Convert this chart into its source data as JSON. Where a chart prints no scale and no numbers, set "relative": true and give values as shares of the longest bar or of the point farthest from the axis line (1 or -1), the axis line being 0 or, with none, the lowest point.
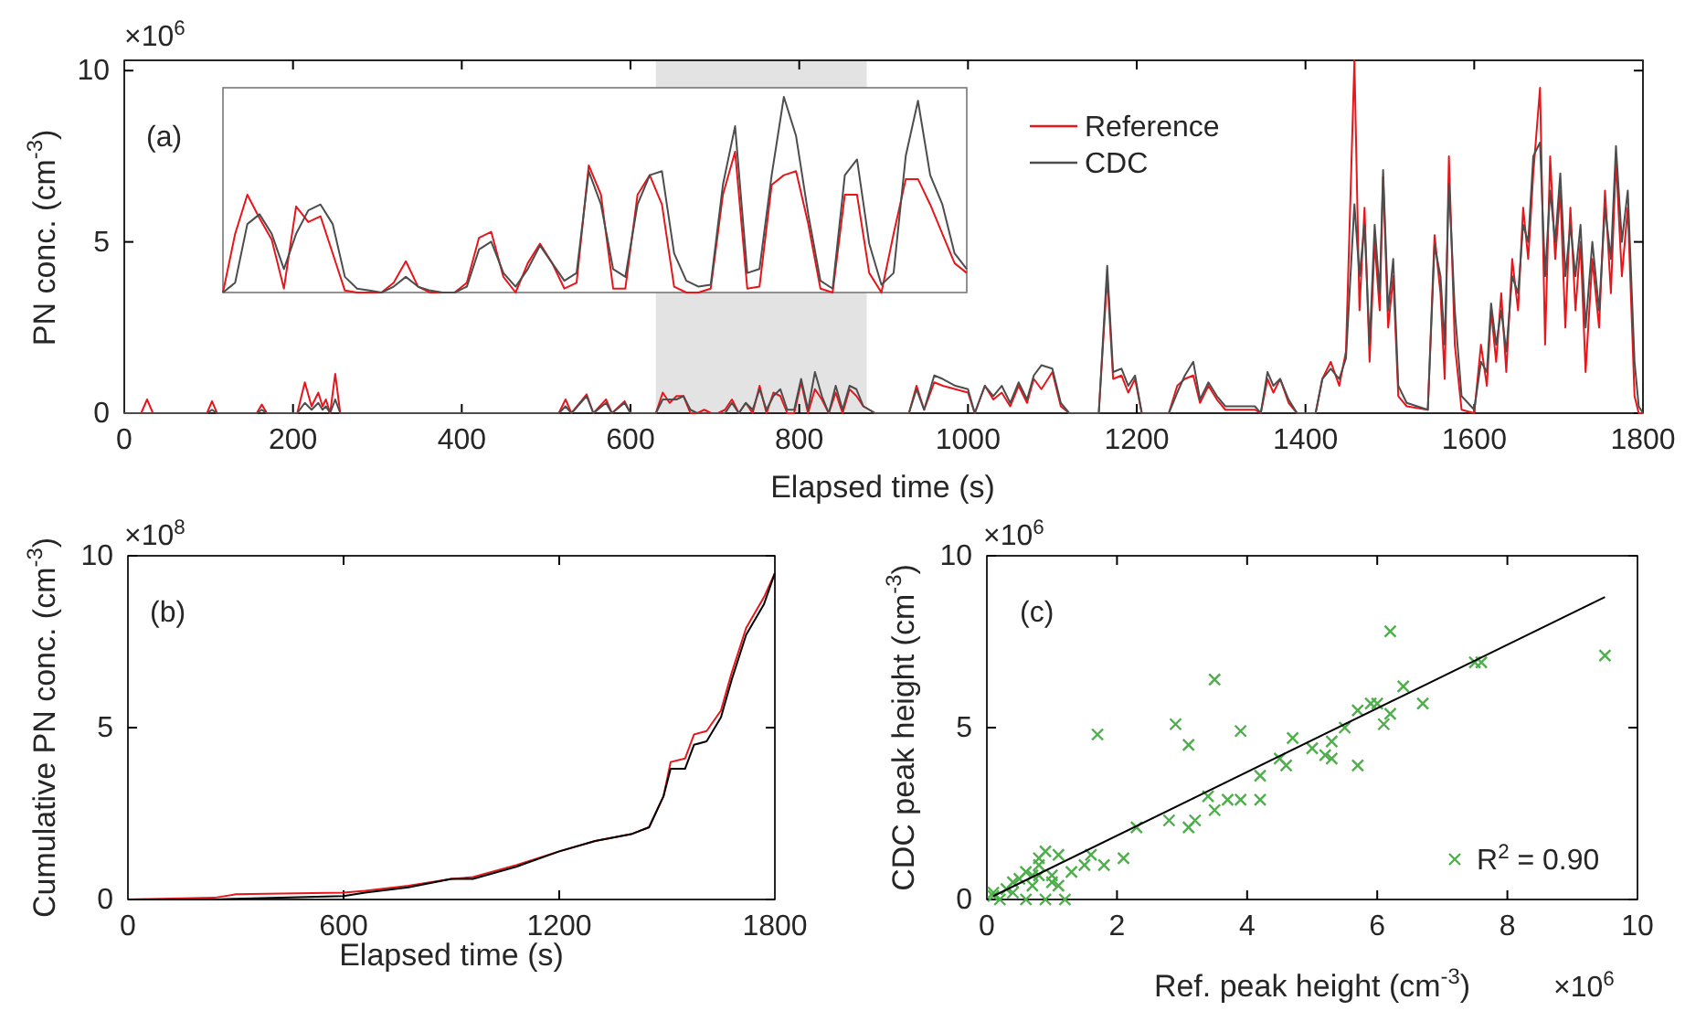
{
  "chart_data": [
    {
      "type": "line",
      "xlabel": "Elapsed time (s)",
      "ylabel": "PN conc. (cm$^{-3}$)",
      "annotations": [
        "×10$^{6}$",
        "(a)"
      ],
      "xlim": [
        0,
        1800
      ],
      "ylim": [
        0,
        10.3
      ],
      "xticks": [
        0,
        200,
        400,
        600,
        800,
        1000,
        1200,
        1400,
        1600,
        1800
      ],
      "yticks": [
        0,
        5,
        10
      ],
      "legend": "top",
      "bands": [
        {
          "axis": "x",
          "from": 630,
          "to": 880,
          "color": "#e3e3e3"
        }
      ],
      "x": [
        0,
        20,
        27,
        34,
        98,
        104,
        110,
        157,
        163,
        169,
        205,
        214,
        222,
        230,
        235,
        239,
        244,
        250,
        256,
        515,
        523,
        530,
        548,
        556,
        571,
        578,
        593,
        600,
        630,
        638.2,
        646.4,
        654.6,
        662.8,
        671,
        679.2,
        687.4,
        695.6,
        703.8,
        712,
        720.2,
        728.4,
        736.6,
        744.8,
        753,
        761.2,
        769.4,
        777.6,
        785.8,
        794,
        802.2,
        810.4,
        818.6,
        826.8,
        835,
        843.2,
        851.4,
        859.6,
        867.8,
        876,
        890,
        930,
        939,
        948,
        960,
        970,
        985,
        1000,
        1008,
        1020,
        1030,
        1040,
        1050,
        1060,
        1070,
        1078,
        1087,
        1100,
        1110,
        1120,
        1155,
        1165,
        1172,
        1182,
        1190,
        1198,
        1206,
        1238,
        1248,
        1257,
        1267,
        1275,
        1285,
        1295,
        1305,
        1340,
        1347,
        1355,
        1362,
        1370,
        1380,
        1390,
        1412,
        1420,
        1430,
        1440,
        1448,
        1458,
        1464,
        1470,
        1476,
        1482,
        1488,
        1492,
        1498,
        1504,
        1510,
        1520,
        1545,
        1553,
        1560,
        1565,
        1570,
        1577,
        1585,
        1600,
        1608,
        1615,
        1620,
        1626,
        1632,
        1638,
        1645,
        1652,
        1658,
        1664,
        1670,
        1678,
        1684,
        1690,
        1696,
        1702,
        1708,
        1714,
        1720,
        1726,
        1732,
        1740,
        1748,
        1755,
        1762,
        1768,
        1775,
        1782,
        1790,
        1795,
        1800
      ],
      "series": [
        {
          "name": "Reference",
          "color": "#e8161b",
          "values": [
            0,
            0,
            0.4,
            0,
            0,
            0.35,
            0,
            0,
            0.25,
            0,
            0,
            0.9,
            0.2,
            0.6,
            0.2,
            0.4,
            0,
            1.15,
            0,
            0,
            0.4,
            0,
            0.55,
            0,
            0.4,
            0,
            0.35,
            0,
            0,
            0.6,
            0.3,
            0.5,
            0.5,
            0,
            0,
            0.1,
            0,
            0,
            0.1,
            0.4,
            0,
            0.3,
            0,
            0.8,
            0,
            0.6,
            0.5,
            0,
            0,
            0.9,
            0,
            0.7,
            0.4,
            0,
            0.6,
            0,
            0.7,
            0.5,
            0.2,
            0,
            0,
            0.8,
            0.1,
            0.9,
            0.8,
            0.7,
            0.6,
            0,
            0.8,
            0.4,
            0.6,
            0.2,
            0.8,
            0.3,
            1.0,
            0.7,
            1.2,
            0.2,
            0,
            0,
            4.0,
            1.0,
            1.1,
            0.6,
            1.0,
            0,
            0,
            0.8,
            1.0,
            1.1,
            0.3,
            0.8,
            0.4,
            0.1,
            0.1,
            0,
            1.0,
            0.6,
            1.0,
            0.3,
            0,
            0,
            1.0,
            1.5,
            0.8,
            1.8,
            10.3,
            3.0,
            6.0,
            1.5,
            5.0,
            3.0,
            6.9,
            2.5,
            4.0,
            0.5,
            0.2,
            0.1,
            5.2,
            3.5,
            1.0,
            7.5,
            2.0,
            0.1,
            0,
            2.0,
            0.8,
            3.0,
            1.5,
            3.5,
            1.2,
            4.5,
            3.0,
            6.0,
            4.5,
            7.0,
            9.5,
            2.0,
            7.5,
            4.5,
            6.5,
            2.5,
            6.0,
            3.0,
            5.0,
            1.2,
            4.5,
            2.5,
            6.5,
            3.5,
            7.4,
            4.0,
            6.0,
            0.5,
            0,
            0
          ]
        },
        {
          "name": "CDC",
          "color": "#4d4d4d",
          "values": [
            0,
            0,
            0,
            0,
            0,
            0.1,
            0,
            0,
            0.1,
            0,
            0,
            0.3,
            0.1,
            0.3,
            0.1,
            0.2,
            0,
            0.4,
            0,
            0,
            0.2,
            0,
            0.5,
            0,
            0.3,
            0,
            0.3,
            0,
            0,
            0.4,
            0.4,
            0.4,
            0.5,
            0.1,
            0,
            0,
            0,
            0,
            0,
            0.3,
            0,
            0.3,
            0.1,
            0.7,
            0.1,
            0.5,
            0.7,
            0.1,
            0.1,
            1.0,
            0.1,
            1.2,
            0.5,
            0,
            0.8,
            0.1,
            0.8,
            0.7,
            0.2,
            0,
            0,
            0.7,
            0.1,
            1.1,
            1.0,
            0.8,
            0.7,
            0,
            0.8,
            0.5,
            0.8,
            0.3,
            0.9,
            0.4,
            1.1,
            1.4,
            1.3,
            0.3,
            0,
            0,
            4.3,
            1.2,
            1.3,
            0.8,
            1.1,
            0,
            0,
            0.6,
            1.1,
            1.5,
            0.4,
            0.9,
            0.5,
            0.2,
            0.2,
            0,
            1.2,
            0.8,
            1.0,
            0.4,
            0,
            0,
            1.0,
            1.3,
            1.0,
            1.6,
            6.1,
            4.0,
            5.5,
            2.0,
            5.5,
            3.5,
            7.1,
            3.0,
            4.5,
            0.8,
            0.3,
            0.1,
            4.9,
            4.0,
            2.0,
            6.7,
            3.0,
            0.5,
            0.1,
            1.5,
            1.2,
            3.2,
            2.0,
            3.0,
            1.8,
            4.0,
            3.5,
            5.5,
            5.0,
            7.5,
            7.9,
            4.0,
            6.5,
            5.0,
            7.0,
            4.0,
            5.5,
            4.0,
            5.5,
            2.5,
            5.0,
            3.0,
            6.0,
            4.5,
            7.8,
            5.0,
            6.5,
            1.5,
            0.2,
            0
          ]
        }
      ]
    },
    {
      "type": "line",
      "relative": true,
      "categories": [
        null,
        null,
        null,
        null,
        null,
        null,
        null,
        null,
        null,
        null,
        null,
        null,
        null,
        null,
        null,
        null,
        null,
        null,
        null,
        null,
        null,
        null,
        null,
        null,
        null,
        null,
        null,
        null,
        null,
        null,
        null,
        null,
        null,
        null,
        null,
        null,
        null,
        null,
        null,
        null,
        null,
        null,
        null,
        null,
        null,
        null,
        null,
        null,
        null,
        null,
        null,
        null,
        null,
        null,
        null,
        null,
        null,
        null,
        null,
        null,
        null,
        null
      ],
      "series": [
        {
          "color": "#e8161b",
          "values": [
            0,
            0.3,
            0.5,
            0.38,
            0.27,
            0.02,
            0.44,
            0.36,
            0.39,
            0.2,
            0.01,
            0,
            0,
            0,
            0.05,
            0.16,
            0.03,
            0,
            0,
            0,
            0.05,
            0.28,
            0.31,
            0.08,
            0,
            0.15,
            0.25,
            0.15,
            0.02,
            0.05,
            0.65,
            0.5,
            0.02,
            0.02,
            0.5,
            0.6,
            0.45,
            0.03,
            0,
            0,
            0.02,
            0.5,
            0.72,
            0.02,
            0.03,
            0.55,
            0.6,
            0.62,
            0.35,
            0.02,
            0,
            0.5,
            0.5,
            0.1,
            0,
            0.3,
            0.58,
            0.58,
            0.45,
            0.3,
            0.15,
            0.1
          ]
        },
        {
          "color": "#4d4d4d",
          "values": [
            0,
            0.05,
            0.35,
            0.4,
            0.3,
            0.12,
            0.3,
            0.42,
            0.45,
            0.35,
            0.08,
            0.02,
            0.01,
            0,
            0.03,
            0.08,
            0.03,
            0.01,
            0,
            0,
            0.03,
            0.22,
            0.26,
            0.1,
            0.03,
            0.12,
            0.24,
            0.15,
            0.06,
            0.1,
            0.62,
            0.45,
            0.12,
            0.08,
            0.45,
            0.6,
            0.62,
            0.2,
            0.06,
            0.03,
            0.04,
            0.55,
            0.85,
            0.1,
            0.12,
            0.6,
            1,
            0.8,
            0.4,
            0.06,
            0.02,
            0.6,
            0.68,
            0.25,
            0.04,
            0.1,
            0.7,
            0.98,
            0.6,
            0.45,
            0.2,
            0.12
          ]
        }
      ]
    },
    {
      "type": "line",
      "xlabel": "Elapsed time (s)",
      "ylabel": "Cumulative PN conc. (cm$^{-3}$)",
      "annotations": [
        "×10$^{8}$",
        "(b)"
      ],
      "xlim": [
        0,
        1800
      ],
      "ylim": [
        0,
        10
      ],
      "xticks": [
        0,
        600,
        1200,
        1800
      ],
      "yticks": [
        0,
        5,
        10
      ],
      "x": [
        0,
        240,
        300,
        600,
        660,
        780,
        900,
        960,
        1080,
        1200,
        1300,
        1400,
        1450,
        1490,
        1510,
        1550,
        1575,
        1610,
        1650,
        1680,
        1720,
        1770,
        1800
      ],
      "series": [
        {
          "color": "#e8161b",
          "values": [
            0,
            0.05,
            0.15,
            0.2,
            0.25,
            0.4,
            0.6,
            0.65,
            1.0,
            1.4,
            1.7,
            1.9,
            2.1,
            3.0,
            4.0,
            4.1,
            4.8,
            4.9,
            5.5,
            6.6,
            7.9,
            8.8,
            9.5
          ]
        },
        {
          "color": "#000000",
          "values": [
            0,
            0,
            0.02,
            0.1,
            0.2,
            0.35,
            0.6,
            0.6,
            0.95,
            1.4,
            1.7,
            1.9,
            2.1,
            3.0,
            3.8,
            3.8,
            4.5,
            4.6,
            5.3,
            6.4,
            7.7,
            8.6,
            9.5
          ]
        }
      ]
    },
    {
      "type": "scatter",
      "xlabel": "Ref. peak height (cm$^{-3}$)",
      "ylabel": "CDC peak height (cm$^{-3}$)",
      "annotations": [
        "×10$^{6}$",
        "(c)",
        "×10$^{6}$"
      ],
      "xlim": [
        0,
        10
      ],
      "ylim": [
        0,
        10
      ],
      "xticks": [
        0,
        2,
        4,
        6,
        8,
        10
      ],
      "yticks": [
        0,
        5,
        10
      ],
      "legend": "bottom right",
      "series": [
        {
          "name": "R$^{2}$ = 0.90",
          "color": "#4daf4a",
          "marker": "cross",
          "x": [
            9.5,
            6.2,
            5.9,
            6.7,
            6.4,
            7.5,
            7.6,
            5.7,
            6.0,
            6.1,
            6.2,
            5.5,
            5.7,
            5.3,
            5.0,
            5.2,
            5.3,
            4.7,
            4.5,
            4.6,
            4.2,
            4.2,
            3.9,
            3.5,
            2.9,
            3.1,
            1.7,
            3.4,
            3.5,
            3.7,
            3.9,
            3.1,
            3.2,
            2.8,
            2.3,
            2.1,
            1.8,
            1.6,
            1.5,
            1.3,
            1.2,
            0.9,
            1.1,
            0.9,
            0.8,
            0.6,
            0.7,
            0.4,
            0.3,
            0.1,
            0.1,
            0.8,
            1.0,
            1.1,
            0.7,
            0.6,
            0.5,
            0.4,
            0.2,
            1.0,
            0.8
          ],
          "values": [
            7.1,
            7.8,
            5.7,
            5.7,
            6.2,
            6.9,
            6.9,
            5.5,
            5.7,
            5.1,
            5.4,
            5.0,
            3.9,
            4.6,
            4.4,
            4.2,
            4.1,
            4.7,
            4.1,
            3.9,
            3.6,
            2.9,
            4.9,
            6.4,
            5.1,
            4.5,
            4.8,
            3.0,
            2.6,
            2.9,
            2.9,
            2.1,
            2.3,
            2.3,
            2.1,
            1.2,
            1.0,
            1.3,
            1.0,
            0.8,
            0,
            0,
            1.3,
            1.4,
            1.2,
            0.8,
            0.7,
            0.5,
            0.3,
            0.2,
            0.1,
            1.0,
            0.5,
            0.4,
            0.4,
            0,
            0.6,
            0.2,
            0,
            0.7,
            0.7
          ]
        },
        {
          "type": "line",
          "color": "#000000",
          "x": [
            0.1,
            9.5
          ],
          "values": [
            0.1,
            8.8
          ]
        }
      ]
    }
  ]
}
